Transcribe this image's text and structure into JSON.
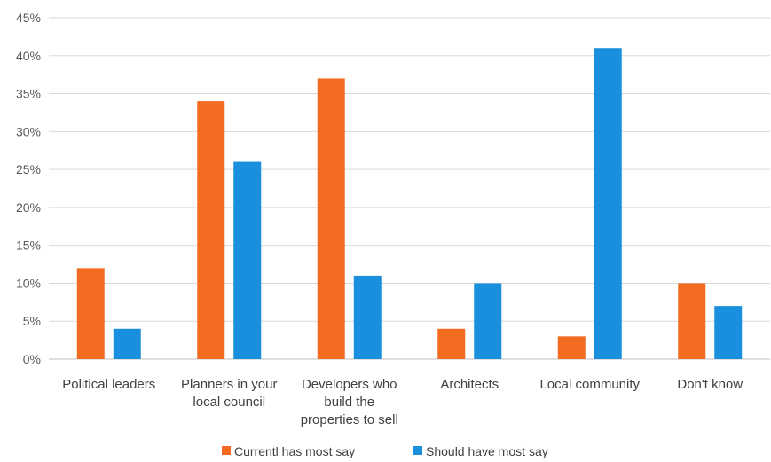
{
  "chart_data": {
    "type": "bar",
    "categories": [
      [
        "Political leaders"
      ],
      [
        "Planners in your",
        "local council"
      ],
      [
        "Developers who",
        "build the",
        "properties to sell"
      ],
      [
        "Architects"
      ],
      [
        "Local community"
      ],
      [
        "Don't know"
      ]
    ],
    "series": [
      {
        "name": "Currentl has most say",
        "color": "#f26b21",
        "values": [
          12,
          34,
          37,
          4,
          3,
          10
        ]
      },
      {
        "name": "Should have most say",
        "color": "#1a8fdd",
        "values": [
          4,
          26,
          11,
          10,
          41,
          7
        ]
      }
    ],
    "yticks": [
      "0%",
      "5%",
      "10%",
      "15%",
      "20%",
      "25%",
      "30%",
      "35%",
      "40%",
      "45%"
    ],
    "ylim": [
      0,
      45
    ],
    "ytick_step": 5,
    "grid": true,
    "legend_position": "bottom"
  }
}
